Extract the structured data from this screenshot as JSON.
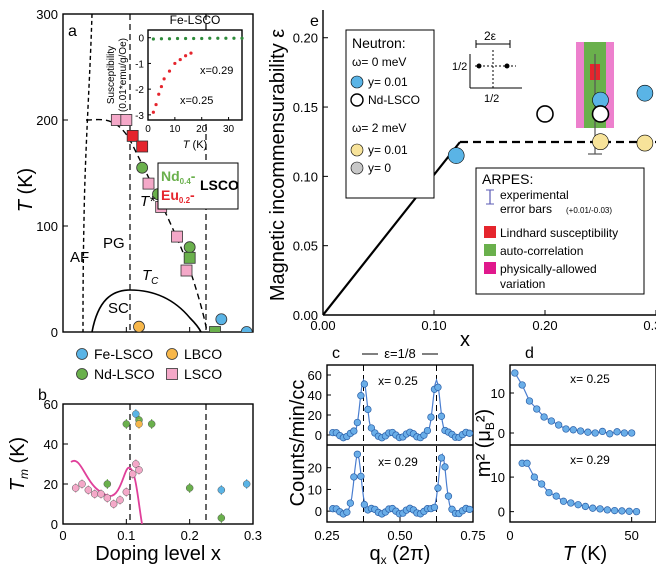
{
  "chart_data": [
    {
      "panel": "a",
      "type": "scatter",
      "xlabel": "",
      "ylabel": "T (K)",
      "xlim": [
        0,
        0.3
      ],
      "ylim": [
        0,
        300
      ],
      "yticks": [
        "0",
        "100",
        "200",
        "300"
      ],
      "annotations": [
        "AF",
        "PG",
        "T*",
        "T_C",
        "SC"
      ],
      "legend_box": {
        "line1_a": "Nd",
        "line1_sub": "0.4",
        "line1_b": "-",
        "line2_a": "Eu",
        "line2_sub": "0.2",
        "line2_b": "-",
        "suffix": "LSCO"
      },
      "series": [
        {
          "name": "Fe-LSCO",
          "color": "#5ab4e6",
          "shape": "circle",
          "x": [
            0.25,
            0.29
          ],
          "y": [
            12,
            0
          ]
        },
        {
          "name": "Nd-LSCO",
          "color": "#6ab04c",
          "shape": "circle",
          "x": [
            0.125,
            0.15,
            0.2
          ],
          "y": [
            155,
            130,
            80
          ]
        },
        {
          "name": "LBCO",
          "color": "#f7b74a",
          "shape": "circle",
          "x": [
            0.12
          ],
          "y": [
            5
          ]
        },
        {
          "name": "LSCO",
          "color": "#f4a8c8",
          "shape": "square",
          "x": [
            0.085,
            0.1,
            0.135,
            0.155,
            0.18,
            0.195
          ],
          "y": [
            200,
            200,
            140,
            118,
            90,
            58
          ]
        },
        {
          "name": "Nd/Eu-LSCO",
          "color": "#e5252d",
          "shape": "square",
          "x": [
            0.11,
            0.125,
            0.165
          ],
          "y": [
            185,
            175,
            125
          ]
        },
        {
          "name": "Nd/Eu-LSCO-green",
          "color": "#6ab04c",
          "shape": "square",
          "x": [
            0.2,
            0.24
          ],
          "y": [
            70,
            0
          ]
        }
      ]
    },
    {
      "panel": "a-inset",
      "type": "scatter",
      "title": "Fe-LSCO",
      "xlabel": "T (K)",
      "ylabel": "Susceptibility (0.01*emu/g/Oe)",
      "xlim": [
        0,
        35
      ],
      "ylim": [
        -3.2,
        0.3
      ],
      "xticks": [
        "0",
        "10",
        "20",
        "30"
      ],
      "yticks": [
        "0",
        "-1",
        "-2",
        "-3"
      ],
      "series": [
        {
          "name": "x=0.29",
          "color": "#2e8b3a",
          "x": [
            2,
            5,
            8,
            11,
            14,
            17,
            20,
            23,
            26,
            29,
            32,
            35
          ],
          "y": [
            -0.05,
            -0.04,
            -0.04,
            -0.03,
            -0.03,
            -0.03,
            -0.03,
            -0.02,
            -0.02,
            -0.02,
            -0.02,
            -0.02
          ]
        },
        {
          "name": "x=0.25",
          "color": "#e5252d",
          "x": [
            2,
            3,
            4,
            5,
            6,
            8,
            10,
            12,
            14,
            16
          ],
          "y": [
            -2.9,
            -2.6,
            -2.2,
            -1.9,
            -1.6,
            -1.3,
            -1.0,
            -0.85,
            -0.7,
            -0.6
          ]
        }
      ]
    },
    {
      "panel": "b",
      "type": "scatter",
      "xlabel": "Doping level x",
      "ylabel": "T_m (K)",
      "xlim": [
        0,
        0.3
      ],
      "ylim": [
        0,
        60
      ],
      "xticks": [
        "0",
        "0.1",
        "0.2",
        "0.3"
      ],
      "yticks": [
        "0",
        "20",
        "40",
        "60"
      ],
      "series": [
        {
          "name": "Fe-LSCO",
          "color": "#5ab4e6",
          "x": [
            0.115,
            0.25,
            0.29
          ],
          "y": [
            55,
            17,
            20
          ]
        },
        {
          "name": "Nd-LSCO",
          "color": "#6ab04c",
          "x": [
            0.07,
            0.1,
            0.12,
            0.14,
            0.2,
            0.25
          ],
          "y": [
            20,
            50,
            52,
            50,
            18,
            3
          ]
        },
        {
          "name": "LBCO",
          "color": "#f7b74a",
          "x": [
            0.12
          ],
          "y": [
            50
          ]
        },
        {
          "name": "LSCO",
          "color": "#f4a8c8",
          "x": [
            0.02,
            0.03,
            0.04,
            0.05,
            0.06,
            0.07,
            0.08,
            0.09,
            0.1,
            0.11,
            0.115,
            0.12
          ],
          "y": [
            18,
            20,
            17,
            15,
            15,
            13,
            10,
            12,
            16,
            25,
            30,
            27
          ]
        }
      ]
    },
    {
      "panel": "e",
      "type": "scatter",
      "xlabel": "x",
      "ylabel": "Magnetic incommensurability ε",
      "xlim": [
        0,
        0.3
      ],
      "ylim": [
        0,
        0.22
      ],
      "xticks": [
        "0.00",
        "0.10",
        "0.20",
        "0.30"
      ],
      "yticks": [
        "0.00",
        "0.05",
        "0.10",
        "0.15",
        "0.20"
      ],
      "neutron_legend": {
        "title": "Neutron:",
        "w0": "ω= 0 meV",
        "w0_a": "y= 0.01",
        "w0_b": "Nd-LSCO",
        "w2": "ω= 2 meV",
        "w2_a": "y= 0.01",
        "w2_b": "y= 0"
      },
      "arpes_legend": {
        "title": "ARPES:",
        "i1": "experimental",
        "i1b": "error bars",
        "i1c": "(+0.01/-0.03)",
        "i2": "Lindhard susceptibility",
        "i3": "auto-correlation",
        "i4": "physically-allowed",
        "i4b": "variation"
      },
      "inset": {
        "label": "2ε",
        "ya": "1/2",
        "xa": "1/2"
      },
      "series": [
        {
          "name": "ω=0 meV, y=0.01",
          "color": "#5ab4e6",
          "x": [
            0.12,
            0.25,
            0.29
          ],
          "y": [
            0.115,
            0.155,
            0.16
          ]
        },
        {
          "name": "Nd-LSCO",
          "color": "#ffffff",
          "x": [
            0.2,
            0.25
          ],
          "y": [
            0.145,
            0.145
          ]
        },
        {
          "name": "ω=2 meV, y=0.01",
          "color": "#f7e39a",
          "x": [
            0.25,
            0.29
          ],
          "y": [
            0.125,
            0.124
          ]
        },
        {
          "name": "ω=2 meV, y=0",
          "color": "#c8c8c8",
          "x": [],
          "y": []
        }
      ]
    },
    {
      "panel": "c",
      "type": "line",
      "xlabel": "q_x (2π)",
      "ylabel": "Counts/min/cc",
      "xlim": [
        0.25,
        0.75
      ],
      "xticks": [
        "0.25",
        "0.50",
        "0.75"
      ],
      "annotation": "ε=1/8",
      "subpanels": [
        {
          "label": "x= 0.25",
          "ylim": [
            -10,
            70
          ],
          "yticks": [
            "0",
            "20",
            "40",
            "60"
          ],
          "peaks": [
            0.375,
            0.625
          ],
          "peak_height": 55
        },
        {
          "label": "x= 0.29",
          "ylim": [
            -5,
            30
          ],
          "yticks": [
            "0",
            "10",
            "20"
          ],
          "peaks": [
            0.355,
            0.645
          ],
          "peak_height": 26
        }
      ]
    },
    {
      "panel": "d",
      "type": "line",
      "xlabel": "T (K)",
      "ylabel": "m² (μ_B²)",
      "xlim": [
        0,
        60
      ],
      "xticks": [
        "0",
        "50"
      ],
      "subpanels": [
        {
          "label": "x= 0.25",
          "ylim": [
            -3,
            17
          ],
          "yticks": [
            "0",
            "10"
          ],
          "x": [
            2,
            5,
            8,
            11,
            14,
            17,
            20,
            23,
            26,
            29,
            32,
            35,
            38,
            41,
            44,
            47,
            50
          ],
          "y": [
            15,
            12,
            8,
            6,
            4,
            3,
            2,
            1,
            0.8,
            0.5,
            0.2,
            0,
            0.4,
            -0.2,
            0.3,
            0,
            0
          ]
        },
        {
          "label": "x= 0.29",
          "ylim": [
            -3,
            19
          ],
          "yticks": [
            "0",
            "10"
          ],
          "x": [
            5,
            7,
            10,
            13,
            16,
            19,
            22,
            25,
            28,
            31,
            34,
            37,
            40,
            43,
            46,
            49,
            52
          ],
          "y": [
            14,
            14,
            10,
            8,
            5.5,
            4.5,
            3,
            2.5,
            2,
            1.5,
            1,
            0.8,
            0.5,
            0.3,
            0.2,
            0.1,
            0
          ]
        }
      ]
    }
  ],
  "legend_ab": {
    "items": [
      {
        "label": "Fe-LSCO",
        "color": "#5ab4e6",
        "shape": "circle"
      },
      {
        "label": "LBCO",
        "color": "#f7b74a",
        "shape": "circle"
      },
      {
        "label": "Nd-LSCO",
        "color": "#6ab04c",
        "shape": "circle"
      },
      {
        "label": "LSCO",
        "color": "#f4a8c8",
        "shape": "square"
      }
    ]
  },
  "panel_letters": {
    "a": "a",
    "b": "b",
    "c": "c",
    "d": "d",
    "e": "e"
  },
  "text": {
    "a_ylabel_T": "T",
    "a_ylabel_unit": " (K)",
    "inset_title": "Fe-LSCO",
    "inset_ylabel1": "Susceptibility",
    "inset_ylabel2": "(0.01*emu/g/Oe)",
    "inset_xlabel_T": "T",
    "inset_xlabel_unit": " (K)",
    "inset_x029": "x=0.29",
    "inset_x025": "x=0.25",
    "AF": "AF",
    "PG": "PG",
    "Tstar": "T*",
    "Tc": "T",
    "Tc_sub": "C",
    "SC": "SC",
    "b_ylabel": "T",
    "b_ylabel_sub": "m",
    "b_ylabel_unit": " (K)",
    "b_xlabel": "Doping level x",
    "e_ylabel": "Magnetic incommensurability ε",
    "e_xlabel": "x",
    "c_ylabel": "Counts/min/cc",
    "c_xlabel_q": "q",
    "c_xlabel_sub": "x",
    "c_xlabel_unit": " (2π)",
    "c_eps": "ε=1/8",
    "d_ylabel_m": "m",
    "d_ylabel_rest": "² (μ",
    "d_ylabel_B": "B",
    "d_ylabel_end": "²)",
    "d_xlabel_T": "T",
    "d_xlabel_unit": " (K)"
  }
}
